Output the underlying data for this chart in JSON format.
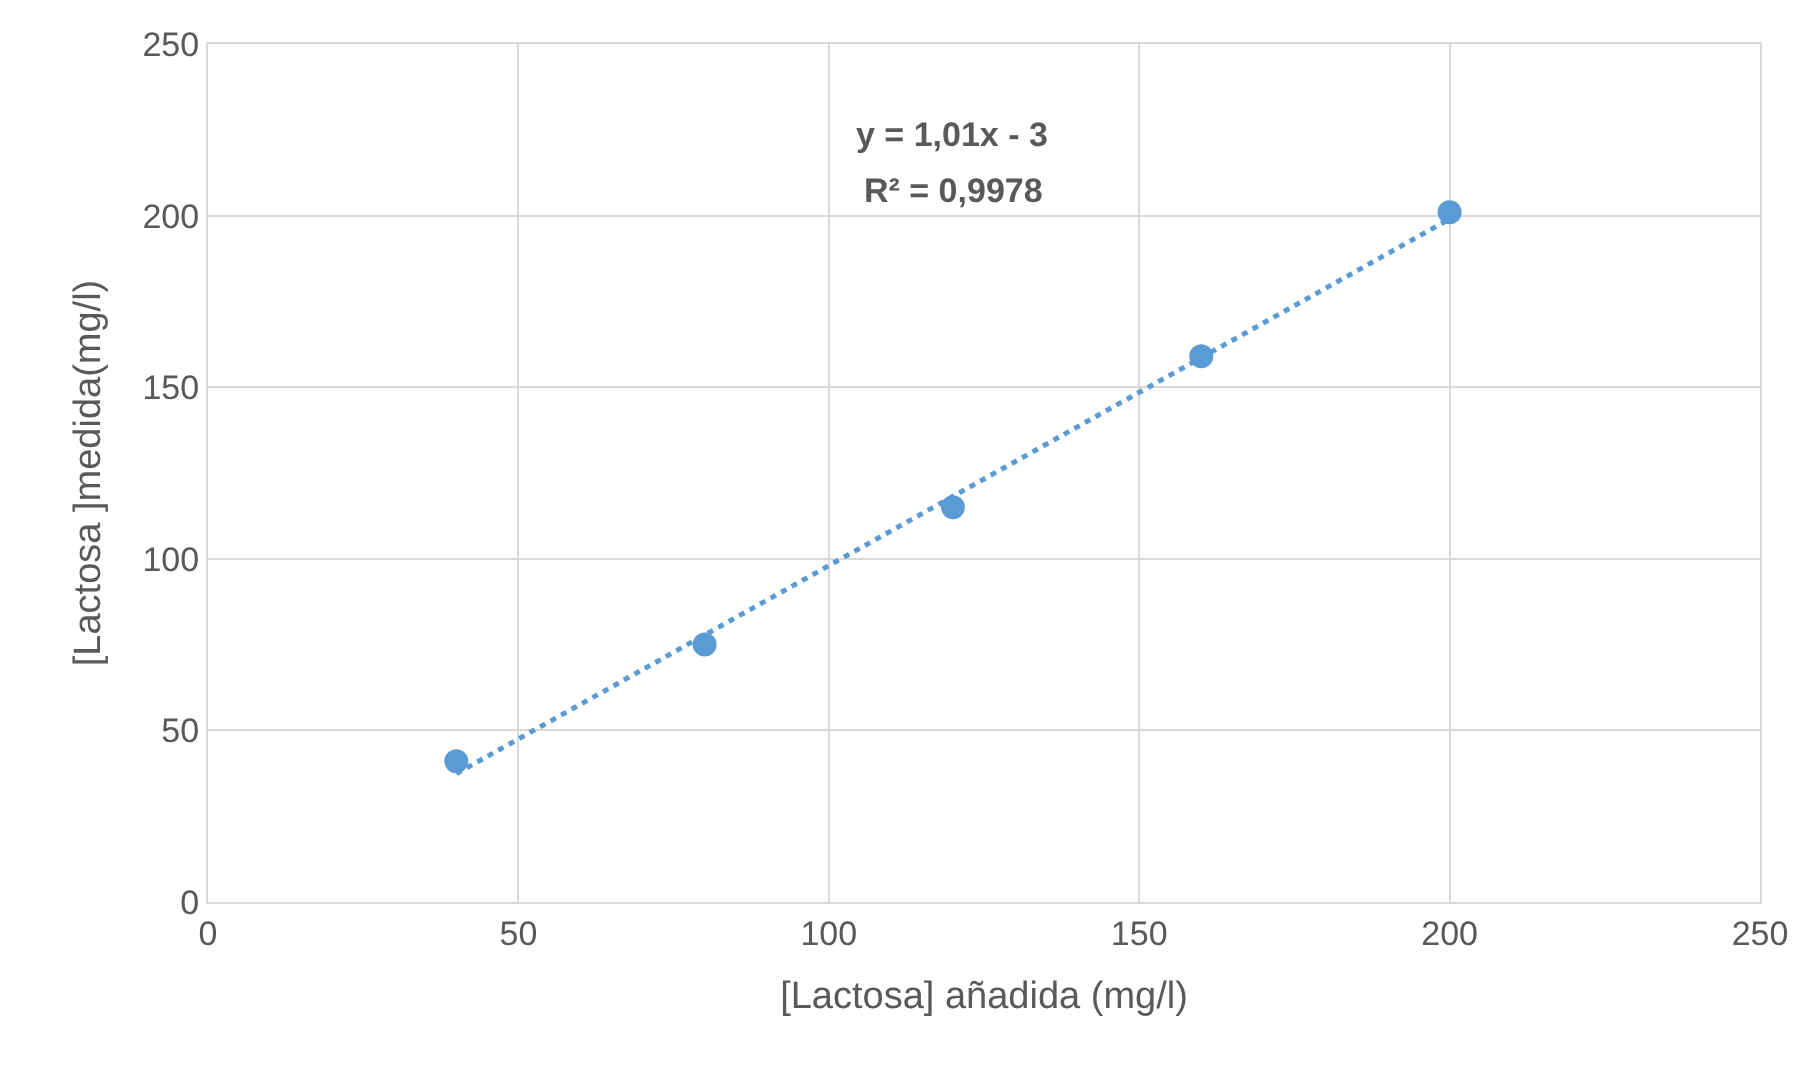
{
  "chart_data": {
    "type": "scatter",
    "xlabel": "[Lactosa] añadida (mg/l)",
    "ylabel": "[Lactosa ]medida(mg/l)",
    "xlim": [
      0,
      250
    ],
    "xticks": [
      0,
      50,
      100,
      150,
      200,
      250
    ],
    "ylim": [
      0,
      250
    ],
    "yticks": [
      0,
      50,
      100,
      150,
      200,
      250
    ],
    "grid": true,
    "marker": "circle",
    "series": [
      {
        "color": "#5b9bd5",
        "x": [
          40,
          80,
          120,
          160,
          200
        ],
        "values": [
          41,
          75,
          115,
          159,
          201
        ]
      },
      {
        "type": "line",
        "color": "#5b9bd5",
        "line_style": "dotted",
        "marker": "none",
        "x": [
          40,
          200
        ],
        "values": [
          37.4,
          199
        ]
      }
    ],
    "annotations": [
      "y = 1,01x - 3",
      "R² = 0,9978"
    ]
  }
}
